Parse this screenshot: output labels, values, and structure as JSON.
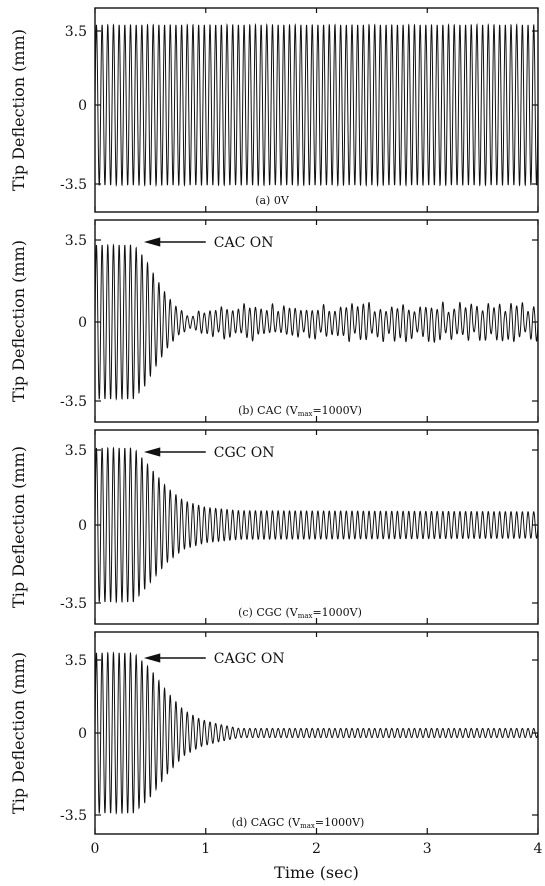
{
  "chart_data": [
    {
      "type": "line",
      "panel_caption": "(a)   0V",
      "ylabel": "Tip Deflection (mm)",
      "ylim": [
        -4.0,
        4.0
      ],
      "yticks": [
        3.5,
        0,
        -3.5
      ],
      "ytick_labels": [
        "3.5",
        "0",
        "-3.5"
      ],
      "xlim": [
        0,
        4
      ],
      "xticks": [
        0,
        1,
        2,
        3,
        4
      ],
      "xtick_labels": [],
      "frequency_hz": 19.5,
      "envelope": {
        "x": [
          0,
          4
        ],
        "amplitude": [
          3.5,
          3.5
        ]
      },
      "annotation": ""
    },
    {
      "type": "line",
      "panel_caption": "(b)   CAC  (V",
      "caption_subscript": "max",
      "caption_suffix": "=1000V)",
      "ylabel": "Tip Deflection (mm)",
      "ylim": [
        -4.0,
        4.0
      ],
      "yticks": [
        3.5,
        0,
        -3.5
      ],
      "ytick_labels": [
        "3.5",
        "0",
        "-3.5"
      ],
      "xlim": [
        0,
        4
      ],
      "xticks": [
        0,
        1,
        2,
        3,
        4
      ],
      "xtick_labels": [],
      "frequency_hz": 19.5,
      "control_on_time": 0.35,
      "envelope": {
        "x": [
          0,
          0.35,
          0.45,
          0.55,
          0.65,
          0.75,
          0.85,
          1.0,
          1.2,
          4.0
        ],
        "amplitude": [
          3.5,
          3.5,
          2.9,
          2.0,
          1.2,
          0.6,
          0.35,
          0.5,
          0.8,
          0.8
        ]
      },
      "annotation": "CAC  ON"
    },
    {
      "type": "line",
      "panel_caption": "(c)   CGC  (V",
      "caption_subscript": "max",
      "caption_suffix": "=1000V)",
      "ylabel": "Tip Deflection (mm)",
      "ylim": [
        -4.0,
        4.0
      ],
      "yticks": [
        3.5,
        0,
        -3.5
      ],
      "ytick_labels": [
        "3.5",
        "0",
        "-3.5"
      ],
      "xlim": [
        0,
        4
      ],
      "xticks": [
        0,
        1,
        2,
        3,
        4
      ],
      "xtick_labels": [],
      "frequency_hz": 19.5,
      "control_on_time": 0.35,
      "envelope": {
        "x": [
          0,
          0.35,
          0.5,
          0.65,
          0.8,
          1.0,
          1.3,
          4.0
        ],
        "amplitude": [
          3.5,
          3.5,
          2.6,
          1.7,
          1.1,
          0.8,
          0.65,
          0.6
        ]
      },
      "annotation": "CGC  ON"
    },
    {
      "type": "line",
      "panel_caption": "(d)   CAGC  (V",
      "caption_subscript": "max",
      "caption_suffix": "=1000V)",
      "ylabel": "Tip Deflection (mm)",
      "ylim": [
        -4.0,
        4.0
      ],
      "yticks": [
        3.5,
        0,
        -3.5
      ],
      "ytick_labels": [
        "3.5",
        "0",
        "-3.5"
      ],
      "xlim": [
        0,
        4
      ],
      "xticks": [
        0,
        1,
        2,
        3,
        4
      ],
      "xtick_labels": [
        "0",
        "1",
        "2",
        "3",
        "4"
      ],
      "xlabel": "Time  (sec)",
      "frequency_hz": 19.5,
      "control_on_time": 0.35,
      "envelope": {
        "x": [
          0,
          0.35,
          0.5,
          0.65,
          0.8,
          0.95,
          1.1,
          1.3,
          4.0
        ],
        "amplitude": [
          3.5,
          3.5,
          2.8,
          1.8,
          1.0,
          0.6,
          0.4,
          0.2,
          0.2
        ]
      },
      "annotation": "CAGC  ON"
    }
  ]
}
